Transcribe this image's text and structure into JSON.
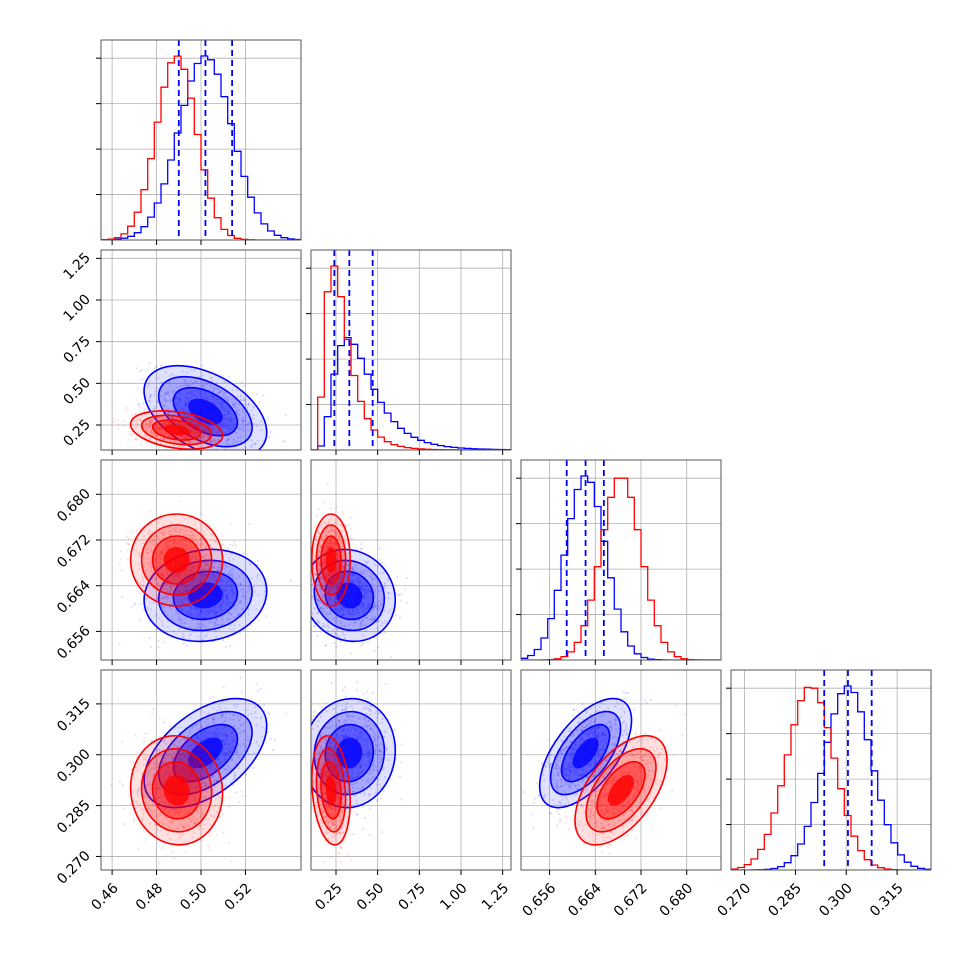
{
  "chart_data": {
    "type": "corner",
    "title": "",
    "grid": true,
    "series_colors": [
      "#0000ff",
      "#ff0000"
    ],
    "series": [
      {
        "color": "#0000ff",
        "mean": [
          0.502,
          0.33,
          0.6623,
          0.3005
        ],
        "sd": [
          0.012,
          0.12,
          0.0035,
          0.007
        ],
        "corr01": -0.45,
        "corr02": 0.1,
        "corr03": 0.5,
        "corr12": -0.1,
        "corr13": 0.05,
        "corr23": 0.6
      },
      {
        "color": "#ff0000",
        "mean": [
          0.489,
          0.22,
          0.6685,
          0.2895
        ],
        "sd": [
          0.009,
          0.05,
          0.0035,
          0.007
        ],
        "corr01": -0.3,
        "corr02": 0.0,
        "corr03": -0.05,
        "corr12": 0.0,
        "corr13": -0.2,
        "corr23": 0.55
      }
    ],
    "quantile_lines_blue": [
      [
        0.49,
        0.502,
        0.514
      ],
      [
        0.24,
        0.33,
        0.47
      ],
      [
        0.659,
        0.6623,
        0.6655
      ],
      [
        0.2935,
        0.3005,
        0.3075
      ]
    ],
    "params": [
      {
        "range": [
          0.455,
          0.545
        ],
        "ticks": [
          "0.46",
          "0.48",
          "0.50",
          "0.52"
        ]
      },
      {
        "range": [
          0.1,
          1.3
        ],
        "ticks": [
          "0.25",
          "0.50",
          "0.75",
          "1.00",
          "1.25"
        ]
      },
      {
        "range": [
          0.651,
          0.686
        ],
        "ticks": [
          "0.656",
          "0.664",
          "0.672",
          "0.680"
        ]
      },
      {
        "range": [
          0.266,
          0.325
        ],
        "ticks": [
          "0.270",
          "0.285",
          "0.300",
          "0.315"
        ]
      }
    ]
  }
}
